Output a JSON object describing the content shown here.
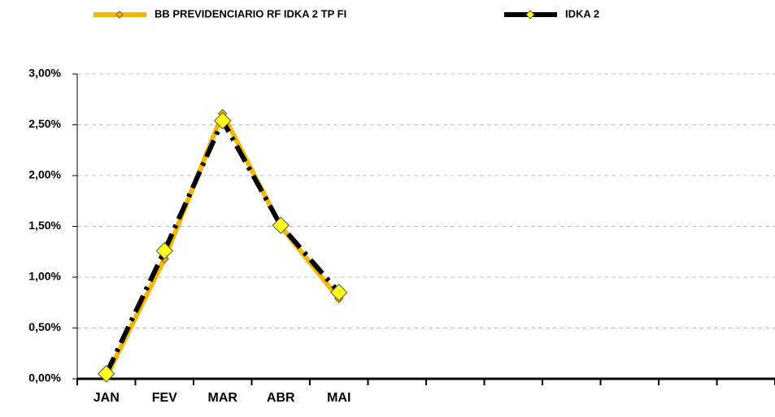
{
  "chart_data": {
    "type": "line",
    "categories": [
      "JAN",
      "FEV",
      "MAR",
      "ABR",
      "MAI",
      null,
      null,
      null,
      null,
      null,
      null,
      null
    ],
    "series": [
      {
        "name": "BB PREVIDENCIARIO RF IDKA 2 TP FI",
        "color": "#f5b800",
        "values": [
          0.02,
          1.18,
          2.61,
          1.5,
          0.79,
          null,
          null,
          null,
          null,
          null,
          null,
          null
        ]
      },
      {
        "name": "IDKA 2",
        "color": "#000000",
        "values": [
          0.05,
          1.26,
          2.54,
          1.51,
          0.85,
          null,
          null,
          null,
          null,
          null,
          null,
          null
        ]
      }
    ],
    "ylim": [
      0,
      3
    ],
    "yticks": [
      {
        "value": 0,
        "label": "0,00%"
      },
      {
        "value": 0.5,
        "label": "0,50%"
      },
      {
        "value": 1,
        "label": "1,00%"
      },
      {
        "value": 1.5,
        "label": "1,50%"
      },
      {
        "value": 2,
        "label": "2,00%"
      },
      {
        "value": 2.5,
        "label": "2,50%"
      },
      {
        "value": 3,
        "label": "3,00%"
      }
    ],
    "grid": true,
    "legend": "top"
  }
}
